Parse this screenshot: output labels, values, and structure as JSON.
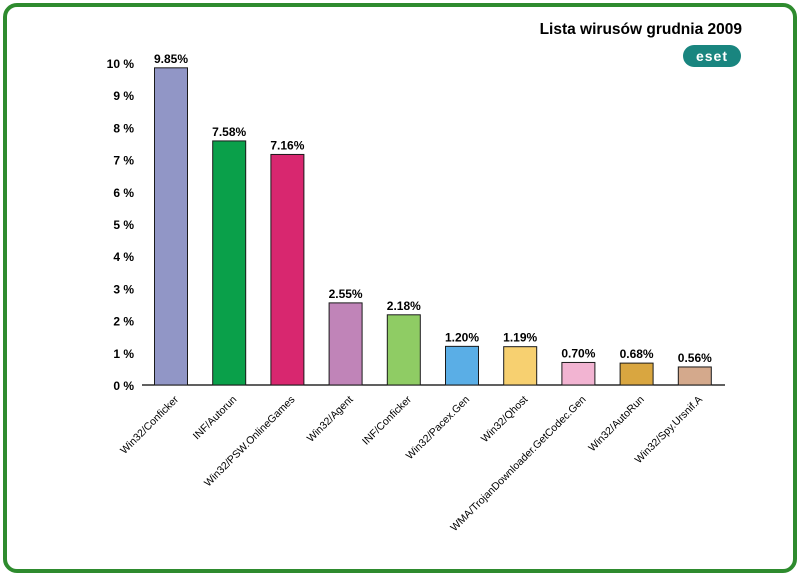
{
  "chart_data": {
    "type": "bar",
    "title": "Lista wirusów grudnia 2009",
    "xlabel": "",
    "ylabel": "",
    "ylim": [
      0,
      10
    ],
    "yticks": [
      0,
      1,
      2,
      3,
      4,
      5,
      6,
      7,
      8,
      9,
      10
    ],
    "ytick_labels": [
      "0 %",
      "1 %",
      "2 %",
      "3 %",
      "4 %",
      "5 %",
      "6 %",
      "7 %",
      "8 %",
      "9 %",
      "10 %"
    ],
    "categories": [
      "Win32/Conficker",
      "INF/Autorun",
      "Win32/PSW.OnlineGames",
      "Win32/Agent",
      "INF/Conficker",
      "Win32/Pacex.Gen",
      "Win32/Qhost",
      "WMA/TrojanDownloader.GetCodec.Gen",
      "Win32/AutoRun",
      "Win32/Spy.Ursnif.A"
    ],
    "values": [
      9.85,
      7.58,
      7.16,
      2.55,
      2.18,
      1.2,
      1.19,
      0.7,
      0.68,
      0.56
    ],
    "value_labels": [
      "9.85%",
      "7.58%",
      "7.16%",
      "2.55%",
      "2.18%",
      "1.20%",
      "1.19%",
      "0.70%",
      "0.68%",
      "0.56%"
    ],
    "colors": [
      "#9196c6",
      "#0aa04a",
      "#d8276f",
      "#c084b8",
      "#8fcc64",
      "#5aaee6",
      "#f7d070",
      "#f2b4d2",
      "#d9a640",
      "#d4a98c"
    ],
    "grid": false,
    "legend": "none"
  },
  "logo": {
    "text": "eset"
  }
}
